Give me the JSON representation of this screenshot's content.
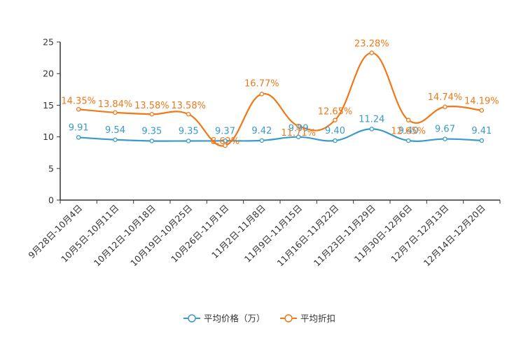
{
  "chart_data": {
    "type": "line",
    "title": "",
    "xlabel": "",
    "ylabel": "",
    "ylim": [
      0,
      25
    ],
    "yticks": [
      0,
      5,
      10,
      15,
      20,
      25
    ],
    "ytick_labels": [
      "0",
      "5",
      "10",
      "15",
      "20",
      "25"
    ],
    "categories": [
      "9月28日-10月4日",
      "10月5日-10月11日",
      "10月12日-10月18日",
      "10月19日-10月25日",
      "10月26日-11月1日",
      "11月2日-11月8日",
      "11月9日-11月15日",
      "11月16日-11月22日",
      "11月23日-11月29日",
      "11月30日-12月6日",
      "12月7日-12月13日",
      "12月14日-12月20日"
    ],
    "series": [
      {
        "name": "平均价格（万）",
        "color": "#3a9ac8",
        "values": [
          9.91,
          9.54,
          9.35,
          9.35,
          9.37,
          9.42,
          9.99,
          9.4,
          11.24,
          9.4,
          9.67,
          9.41
        ],
        "labels": [
          "9.91",
          "9.54",
          "9.35",
          "9.35",
          "9.37",
          "9.42",
          "9.99",
          "9.40",
          "11.24",
          "9.40",
          "9.67",
          "9.41"
        ]
      },
      {
        "name": "平均折扣",
        "color": "#f07818",
        "values": [
          14.35,
          13.84,
          13.58,
          13.58,
          8.62,
          16.77,
          11.71,
          12.65,
          23.28,
          12.65,
          14.74,
          14.19
        ],
        "labels": [
          "14.35%",
          "13.84%",
          "13.58%",
          "13.58%",
          "8.62%",
          "16.77%",
          "11.71%",
          "12.65%",
          "23.28%",
          "12.65%",
          "14.74%",
          "14.19%"
        ]
      }
    ],
    "legend": "bottom-center",
    "grid": false
  }
}
